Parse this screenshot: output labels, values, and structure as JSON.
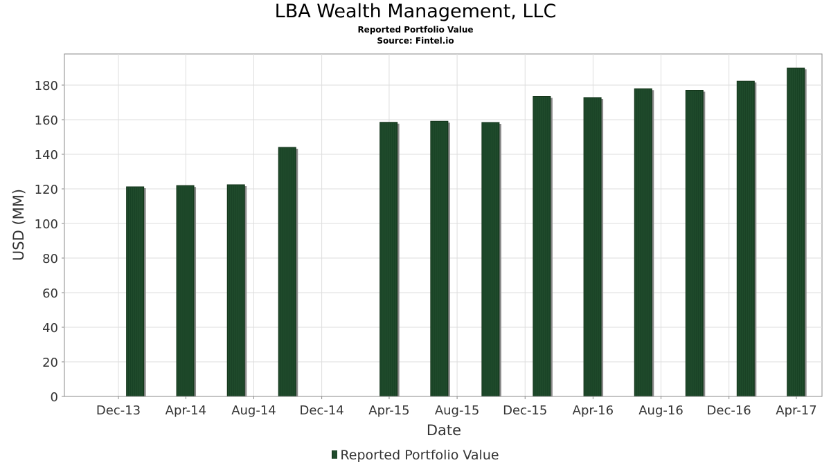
{
  "chart_data": {
    "type": "bar",
    "title": "LBA Wealth Management, LLC",
    "subtitle": "Reported Portfolio Value",
    "source": "Source: Fintel.io",
    "xlabel": "Date",
    "ylabel": "USD (MM)",
    "x_tick_labels": [
      "Dec-13",
      "Apr-14",
      "Aug-14",
      "Dec-14",
      "Apr-15",
      "Aug-15",
      "Dec-15",
      "Apr-16",
      "Aug-16",
      "Dec-16",
      "Apr-17"
    ],
    "y_ticks": [
      0,
      20,
      40,
      60,
      80,
      100,
      120,
      140,
      160,
      180
    ],
    "ylim": [
      0,
      198
    ],
    "grid": true,
    "legend_position": "bottom",
    "series": [
      {
        "name": "Reported Portfolio Value",
        "color": "#1f4a2b",
        "points": [
          {
            "date": "2013-12-31",
            "value": 121.2
          },
          {
            "date": "2014-03-31",
            "value": 121.9
          },
          {
            "date": "2014-06-30",
            "value": 122.4
          },
          {
            "date": "2014-09-30",
            "value": 144.0
          },
          {
            "date": "2015-03-31",
            "value": 158.5
          },
          {
            "date": "2015-06-30",
            "value": 159.1
          },
          {
            "date": "2015-09-30",
            "value": 158.4
          },
          {
            "date": "2015-12-31",
            "value": 173.4
          },
          {
            "date": "2016-03-31",
            "value": 172.8
          },
          {
            "date": "2016-06-30",
            "value": 177.9
          },
          {
            "date": "2016-09-30",
            "value": 177.0
          },
          {
            "date": "2016-12-31",
            "value": 182.3
          },
          {
            "date": "2017-03-31",
            "value": 189.9
          }
        ]
      }
    ]
  }
}
